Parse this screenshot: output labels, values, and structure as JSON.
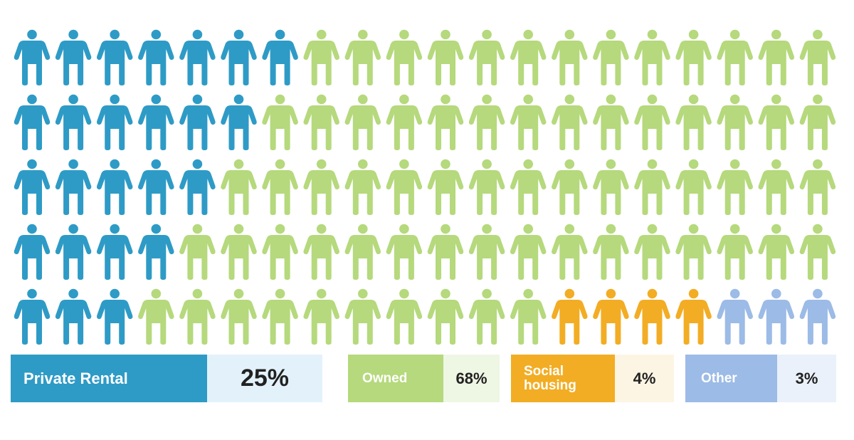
{
  "chart_data": {
    "type": "pictogram",
    "title": "",
    "total_icons": 100,
    "rows": 5,
    "columns": 20,
    "categories": [
      {
        "name": "Private Rental",
        "percent_label": "25%",
        "value": 25,
        "color": "#2e9bc6",
        "light": "#e3f2fa"
      },
      {
        "name": "Owned",
        "percent_label": "68%",
        "value": 68,
        "color": "#b5d97c",
        "light": "#eef6e4"
      },
      {
        "name": "Social housing",
        "name_lines": [
          "Social",
          "housing"
        ],
        "percent_label": "4%",
        "value": 4,
        "color": "#f2ad24",
        "light": "#fdf5e4"
      },
      {
        "name": "Other",
        "percent_label": "3%",
        "value": 3,
        "color": "#9cbbe6",
        "light": "#eaf1fa"
      }
    ],
    "row_private_rental_counts": [
      7,
      6,
      5,
      4,
      3
    ]
  }
}
